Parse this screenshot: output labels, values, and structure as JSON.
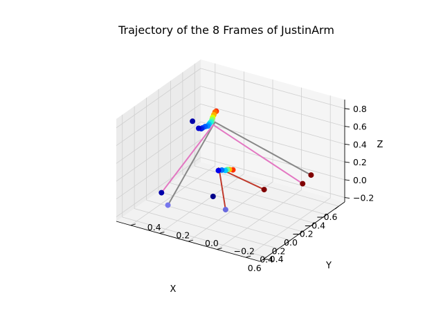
{
  "chart_data": {
    "type": "scatter",
    "projection": "3d",
    "title": "Trajectory of the 8 Frames of JustinArm",
    "xlabel": "X",
    "ylabel": "Y",
    "zlabel": "Z",
    "xlim": [
      -0.7,
      0.7
    ],
    "ylim": [
      -0.5,
      0.5
    ],
    "zlim": [
      -0.25,
      0.9
    ],
    "xticks": [
      -0.6,
      -0.4,
      -0.2,
      0.0,
      0.2,
      0.4,
      0.6
    ],
    "yticks": [
      -0.4,
      -0.2,
      0.0,
      0.2,
      0.4
    ],
    "zticks": [
      -0.2,
      0.0,
      0.2,
      0.4,
      0.6,
      0.8
    ],
    "xtick_labels": [
      "−0.6",
      "−0.4",
      "−0.2",
      "0.0",
      "0.2",
      "0.4",
      "0.6"
    ],
    "ytick_labels": [
      "−0.4",
      "−0.2",
      "0.0",
      "0.2",
      "0.4"
    ],
    "ztick_labels": [
      "−0.2",
      "0.0",
      "0.2",
      "0.4",
      "0.6",
      "0.8"
    ],
    "grid": true,
    "colormap": "jet",
    "links": [
      {
        "color": "#888888",
        "points": [
          [
            -0.62,
            -0.3,
            0.0
          ],
          [
            0.02,
            0.1,
            0.72
          ],
          [
            0.56,
            0.2,
            0.0
          ]
        ]
      },
      {
        "color": "#e377c2",
        "points": [
          [
            -0.48,
            -0.3,
            -0.03
          ],
          [
            0.0,
            0.12,
            0.67
          ],
          [
            0.38,
            0.32,
            0.0
          ]
        ]
      },
      {
        "color": "#c0392b",
        "points": [
          [
            -0.2,
            -0.15,
            -0.03
          ],
          [
            0.0,
            0.08,
            0.2
          ],
          [
            0.32,
            -0.1,
            -0.03
          ]
        ]
      }
    ],
    "points": [
      {
        "x": -0.62,
        "y": -0.3,
        "z": 0.0,
        "color": "#800000"
      },
      {
        "x": -0.48,
        "y": -0.3,
        "z": -0.03,
        "color": "#800000"
      },
      {
        "x": -0.2,
        "y": -0.15,
        "z": -0.03,
        "color": "#800000"
      },
      {
        "x": 0.05,
        "y": 0.1,
        "z": -0.1,
        "color": "#00008b"
      },
      {
        "x": 0.32,
        "y": -0.1,
        "z": -0.03,
        "color": "#6a6adf"
      },
      {
        "x": 0.38,
        "y": 0.32,
        "z": 0.0,
        "color": "#0000aa"
      },
      {
        "x": 0.56,
        "y": 0.2,
        "z": 0.0,
        "color": "#7777ee"
      },
      {
        "x": -0.05,
        "y": 0.12,
        "z": 0.8,
        "color": "#ff2a00"
      },
      {
        "x": -0.03,
        "y": 0.12,
        "z": 0.8,
        "color": "#ff6a00"
      },
      {
        "x": -0.01,
        "y": 0.12,
        "z": 0.78,
        "color": "#ffb000"
      },
      {
        "x": 0.01,
        "y": 0.12,
        "z": 0.76,
        "color": "#d8ff00"
      },
      {
        "x": 0.02,
        "y": 0.12,
        "z": 0.74,
        "color": "#80ff70"
      },
      {
        "x": 0.03,
        "y": 0.12,
        "z": 0.72,
        "color": "#40ffb0"
      },
      {
        "x": 0.05,
        "y": 0.12,
        "z": 0.72,
        "color": "#20f0e0"
      },
      {
        "x": 0.07,
        "y": 0.12,
        "z": 0.71,
        "color": "#00c0ff"
      },
      {
        "x": 0.09,
        "y": 0.12,
        "z": 0.7,
        "color": "#0090ff"
      },
      {
        "x": 0.11,
        "y": 0.13,
        "z": 0.7,
        "color": "#0060ff"
      },
      {
        "x": 0.13,
        "y": 0.14,
        "z": 0.69,
        "color": "#0040ff"
      },
      {
        "x": 0.15,
        "y": 0.14,
        "z": 0.69,
        "color": "#0020e0"
      },
      {
        "x": 0.17,
        "y": 0.15,
        "z": 0.7,
        "color": "#0000cc"
      },
      {
        "x": 0.2,
        "y": 0.18,
        "z": 0.78,
        "color": "#0000aa"
      },
      {
        "x": -0.04,
        "y": 0.0,
        "z": 0.2,
        "color": "#ff3000"
      },
      {
        "x": -0.03,
        "y": 0.02,
        "z": 0.2,
        "color": "#ffc000"
      },
      {
        "x": -0.02,
        "y": 0.03,
        "z": 0.2,
        "color": "#60ff90"
      },
      {
        "x": -0.01,
        "y": 0.04,
        "z": 0.19,
        "color": "#00c8ff"
      },
      {
        "x": 0.0,
        "y": 0.06,
        "z": 0.19,
        "color": "#0070ff"
      },
      {
        "x": 0.01,
        "y": 0.08,
        "z": 0.18,
        "color": "#0000ee"
      }
    ]
  }
}
